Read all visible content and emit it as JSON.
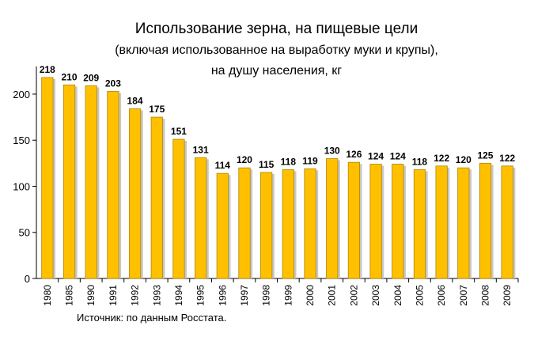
{
  "chart_data": {
    "type": "bar",
    "title": "Использование зерна, на пищевые цели",
    "subtitle_line1": "(включая использованное на выработку муки и крупы),",
    "subtitle_line2": "на душу населения, кг",
    "categories": [
      "1980",
      "1985",
      "1990",
      "1991",
      "1992",
      "1993",
      "1994",
      "1995",
      "1996",
      "1997",
      "1998",
      "1999",
      "2000",
      "2001",
      "2002",
      "2003",
      "2004",
      "2005",
      "2006",
      "2007",
      "2008",
      "2009"
    ],
    "values": [
      218,
      210,
      209,
      203,
      184,
      175,
      151,
      131,
      114,
      120,
      115,
      118,
      119,
      130,
      126,
      124,
      124,
      118,
      122,
      120,
      125,
      122
    ],
    "ylim": [
      0,
      230
    ],
    "yticks": [
      0,
      50,
      100,
      150,
      200
    ],
    "xlabel": "",
    "ylabel": "",
    "bar_color": "#FFC000",
    "bar_edge_color": "#B08400",
    "source": "Источник: по данным Росстата."
  }
}
